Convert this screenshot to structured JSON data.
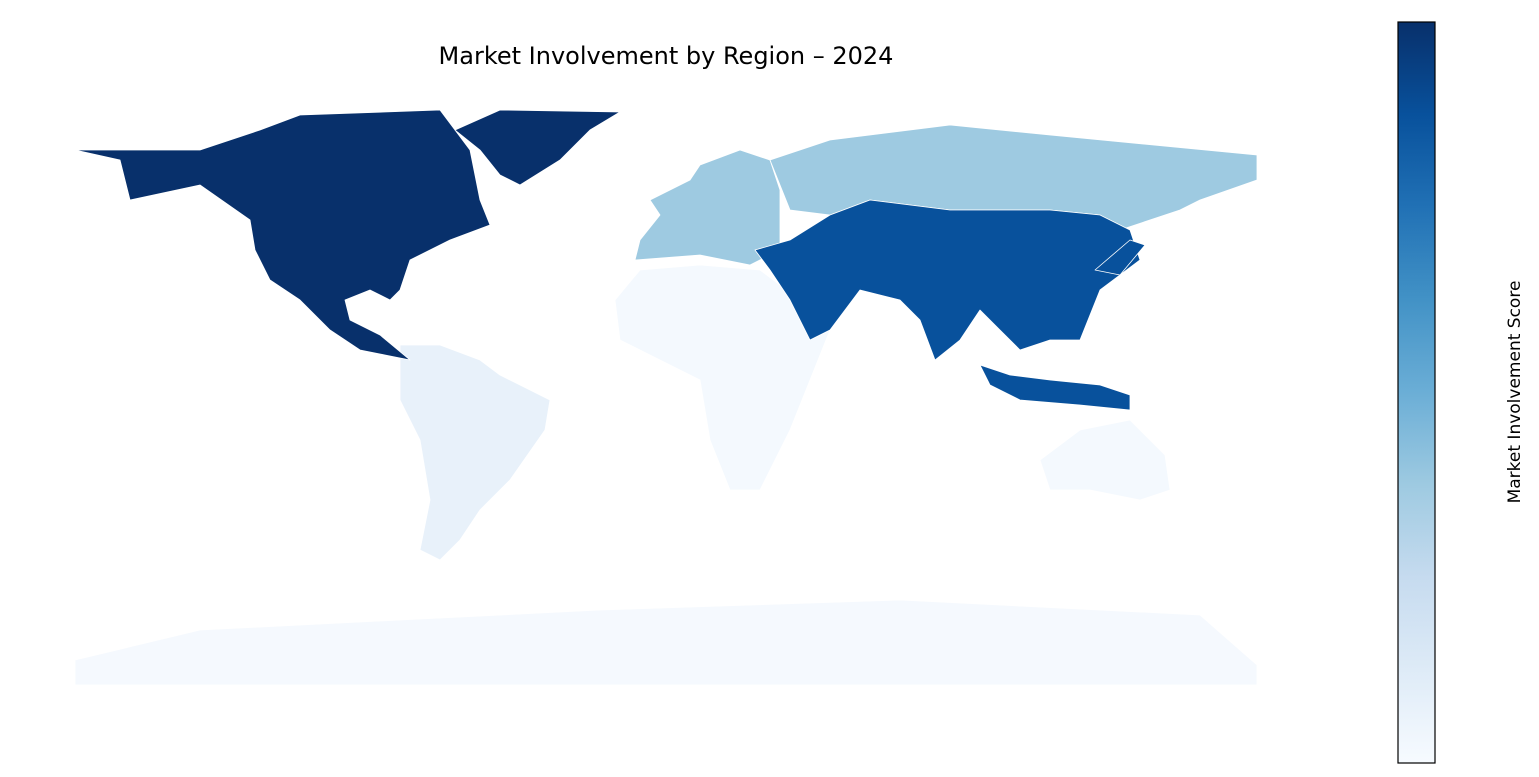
{
  "title": "Market Involvement by Region – 2024",
  "colorbar": {
    "label": "Market Involvement Score",
    "colors": [
      "#f7fbff",
      "#deebf7",
      "#c6dbef",
      "#9ecae1",
      "#6baed6",
      "#4292c6",
      "#2171b5",
      "#08519c",
      "#08306b"
    ]
  }
}
